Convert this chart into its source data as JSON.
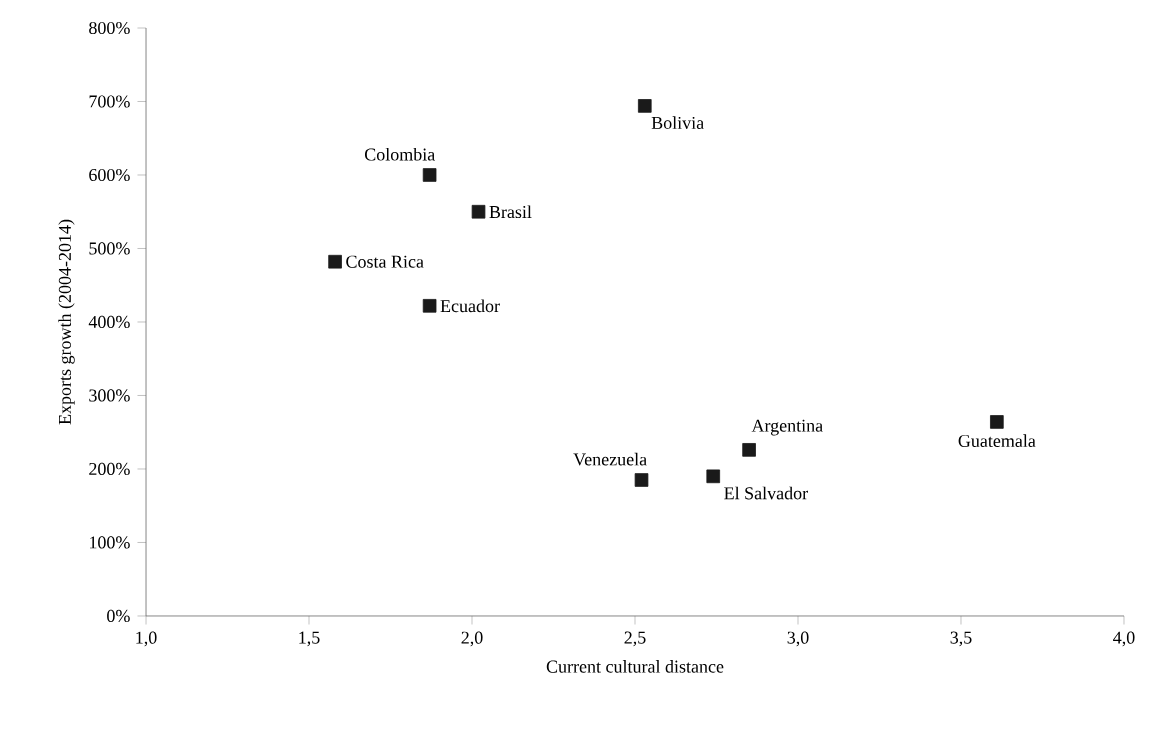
{
  "chart_data": {
    "type": "scatter",
    "xlabel": "Current cultural distance",
    "ylabel": "Exports growth (2004-2014)",
    "x": [
      2.53,
      1.87,
      2.02,
      1.58,
      1.87,
      2.52,
      2.74,
      2.85,
      3.61
    ],
    "values": [
      694,
      600,
      550,
      482,
      422,
      185,
      190,
      226,
      264
    ],
    "color": "#1a1a1a",
    "marker": "square",
    "grid": false,
    "xlim": [
      1,
      4
    ],
    "xticks": [
      {
        "value": 1,
        "label": "1,0"
      },
      {
        "value": 1.5,
        "label": "1,5"
      },
      {
        "value": 2,
        "label": "2,0"
      },
      {
        "value": 2.5,
        "label": "2,5"
      },
      {
        "value": 3,
        "label": "3,0"
      },
      {
        "value": 3.5,
        "label": "3,5"
      },
      {
        "value": 4,
        "label": "4,0"
      }
    ],
    "ylim": [
      0,
      800
    ],
    "yticks": [
      {
        "value": 0,
        "label": "0%"
      },
      {
        "value": 100,
        "label": "100%"
      },
      {
        "value": 200,
        "label": "200%"
      },
      {
        "value": 300,
        "label": "300%"
      },
      {
        "value": 400,
        "label": "400%"
      },
      {
        "value": 500,
        "label": "500%"
      },
      {
        "value": 600,
        "label": "600%"
      },
      {
        "value": 700,
        "label": "700%"
      },
      {
        "value": 800,
        "label": "800%"
      }
    ],
    "annotations": [
      {
        "text": "Bolivia",
        "x": 2.53,
        "y": 694
      },
      {
        "text": "Colombia",
        "x": 1.87,
        "y": 600
      },
      {
        "text": "Brasil",
        "x": 2.02,
        "y": 550
      },
      {
        "text": "Costa Rica",
        "x": 1.58,
        "y": 482
      },
      {
        "text": "Ecuador",
        "x": 1.87,
        "y": 422
      },
      {
        "text": "Venezuela",
        "x": 2.52,
        "y": 185
      },
      {
        "text": "El Salvador",
        "x": 2.74,
        "y": 190
      },
      {
        "text": "Argentina",
        "x": 2.85,
        "y": 226
      },
      {
        "text": "Guatemala",
        "x": 3.61,
        "y": 264
      }
    ]
  }
}
